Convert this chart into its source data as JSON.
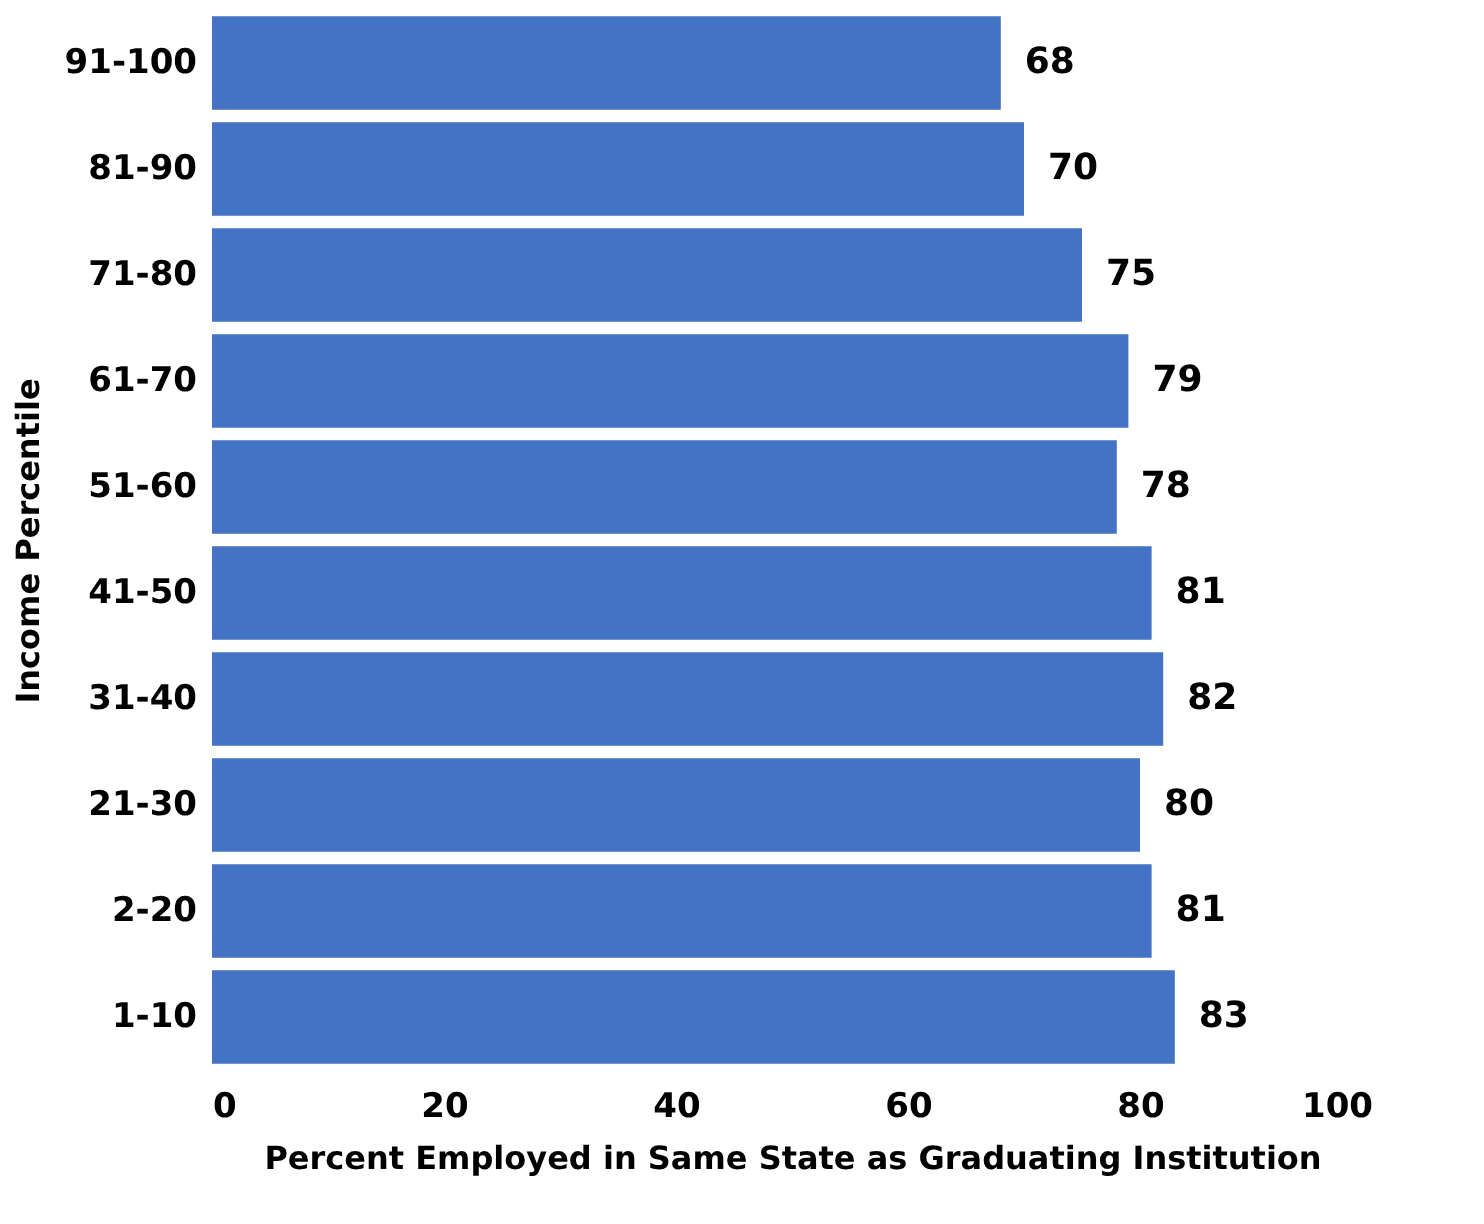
{
  "chart_data": {
    "type": "bar",
    "orientation": "horizontal",
    "xlabel": "Percent Employed in Same State as Graduating Institution",
    "ylabel": "Income Percentile",
    "categories": [
      "91-100",
      "81-90",
      "71-80",
      "61-70",
      "51-60",
      "41-50",
      "31-40",
      "21-30",
      "2-20",
      "1-10"
    ],
    "values": [
      68,
      70,
      75,
      79,
      78,
      81,
      82,
      80,
      81,
      83
    ],
    "color": "#4472c4",
    "xlim": [
      0,
      100
    ],
    "xticks": [
      0,
      20,
      40,
      60,
      80,
      100
    ],
    "grid": false,
    "data_labels": true
  }
}
